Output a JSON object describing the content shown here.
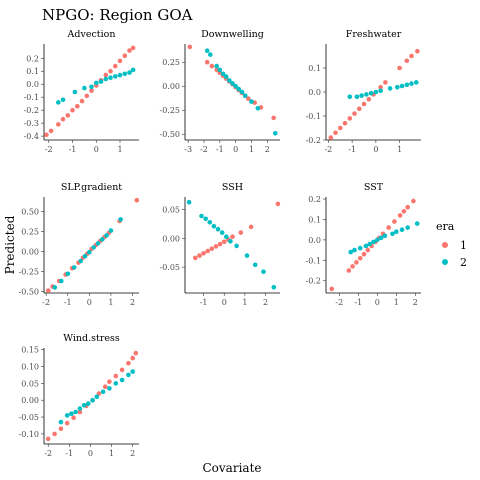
{
  "figure": {
    "title": "NPGO: Region GOA",
    "xlabel": "Covariate",
    "ylabel": "Predicted"
  },
  "legend": {
    "title": "era",
    "entries": [
      {
        "label": "1",
        "color": "#F8766D"
      },
      {
        "label": "2",
        "color": "#00BFC4"
      }
    ]
  },
  "chart_data": [
    {
      "type": "scatter",
      "title": "Advection",
      "xlim": [
        -2.2,
        1.8
      ],
      "ylim": [
        -0.43,
        0.31
      ],
      "xticks": [
        -2,
        -1,
        0,
        1
      ],
      "yticks": [
        -0.4,
        -0.3,
        -0.2,
        -0.1,
        0.0,
        0.1,
        0.2
      ],
      "yticklabels": [
        "-0.4",
        "-0.3",
        "-0.2",
        "-0.1",
        "0.0",
        "0.1",
        "0.2"
      ],
      "series": [
        {
          "name": "1",
          "x": [
            -2.1,
            -1.9,
            -1.6,
            -1.4,
            -1.2,
            -1.0,
            -0.8,
            -0.6,
            -0.4,
            -0.2,
            0.0,
            0.2,
            0.4,
            0.6,
            0.8,
            1.0,
            1.2,
            1.4,
            1.55
          ],
          "y": [
            -0.39,
            -0.36,
            -0.31,
            -0.27,
            -0.24,
            -0.2,
            -0.17,
            -0.13,
            -0.09,
            -0.05,
            -0.01,
            0.03,
            0.07,
            0.1,
            0.14,
            0.18,
            0.22,
            0.26,
            0.28
          ]
        },
        {
          "name": "2",
          "x": [
            -1.6,
            -1.4,
            -0.9,
            -0.5,
            -0.2,
            0.0,
            0.2,
            0.4,
            0.6,
            0.8,
            1.0,
            1.2,
            1.4,
            1.55
          ],
          "y": [
            -0.14,
            -0.12,
            -0.06,
            -0.03,
            -0.02,
            0.01,
            0.02,
            0.04,
            0.05,
            0.06,
            0.07,
            0.08,
            0.09,
            0.11
          ]
        }
      ]
    },
    {
      "type": "scatter",
      "title": "Downwelling",
      "xlim": [
        -3.2,
        2.8
      ],
      "ylim": [
        -0.56,
        0.44
      ],
      "xticks": [
        -3,
        -2,
        -1,
        0,
        1,
        2
      ],
      "yticks": [
        -0.5,
        -0.25,
        0.0,
        0.25
      ],
      "yticklabels": [
        "-0.50",
        "-0.25",
        "0.00",
        "0.25"
      ],
      "series": [
        {
          "name": "1",
          "x": [
            -2.9,
            -1.8,
            -1.5,
            -1.2,
            -1.0,
            -0.8,
            -0.6,
            -0.4,
            -0.2,
            0.0,
            0.2,
            0.4,
            0.6,
            0.8,
            1.2,
            1.6,
            2.4
          ],
          "y": [
            0.41,
            0.25,
            0.21,
            0.17,
            0.14,
            0.11,
            0.08,
            0.05,
            0.02,
            -0.01,
            -0.04,
            -0.07,
            -0.1,
            -0.13,
            -0.17,
            -0.22,
            -0.33
          ]
        },
        {
          "name": "2",
          "x": [
            -1.8,
            -1.6,
            -1.2,
            -1.0,
            -0.8,
            -0.6,
            -0.4,
            -0.2,
            0.0,
            0.2,
            0.4,
            0.6,
            1.0,
            1.4,
            2.5
          ],
          "y": [
            0.37,
            0.33,
            0.21,
            0.17,
            0.13,
            0.1,
            0.06,
            0.03,
            0.0,
            -0.03,
            -0.06,
            -0.1,
            -0.16,
            -0.23,
            -0.49
          ]
        }
      ]
    },
    {
      "type": "scatter",
      "title": "Freshwater",
      "xlim": [
        -2.1,
        1.9
      ],
      "ylim": [
        -0.2,
        0.2
      ],
      "xticks": [
        -2,
        -1,
        0,
        1
      ],
      "yticks": [
        -0.2,
        -0.1,
        0.0,
        0.1
      ],
      "yticklabels": [
        "-0.2",
        "-0.1",
        "0.0",
        "0.1"
      ],
      "series": [
        {
          "name": "1",
          "x": [
            -1.9,
            -1.7,
            -1.5,
            -1.3,
            -1.1,
            -0.9,
            -0.7,
            -0.5,
            -0.3,
            -0.1,
            0.2,
            0.4,
            1.0,
            1.3,
            1.5,
            1.75
          ],
          "y": [
            -0.19,
            -0.17,
            -0.15,
            -0.13,
            -0.11,
            -0.09,
            -0.07,
            -0.05,
            -0.03,
            -0.01,
            0.02,
            0.04,
            0.1,
            0.13,
            0.15,
            0.17
          ]
        },
        {
          "name": "2",
          "x": [
            -1.1,
            -0.8,
            -0.6,
            -0.4,
            -0.2,
            0.0,
            0.2,
            0.6,
            0.9,
            1.1,
            1.3,
            1.5,
            1.7
          ],
          "y": [
            -0.02,
            -0.02,
            -0.015,
            -0.01,
            -0.005,
            0.0,
            0.005,
            0.015,
            0.02,
            0.025,
            0.03,
            0.035,
            0.04
          ]
        }
      ]
    },
    {
      "type": "scatter",
      "title": "SLP.gradient",
      "xlim": [
        -2.1,
        2.3
      ],
      "ylim": [
        -0.52,
        0.68
      ],
      "xticks": [
        -2,
        -1,
        0,
        1,
        2
      ],
      "yticks": [
        -0.5,
        -0.25,
        0.0,
        0.25,
        0.5
      ],
      "yticklabels": [
        "-0.50",
        "-0.25",
        "0.00",
        "0.25",
        "0.50"
      ],
      "series": [
        {
          "name": "1",
          "x": [
            -1.9,
            -1.7,
            -1.4,
            -1.1,
            -0.8,
            -0.5,
            -0.3,
            -0.1,
            0.1,
            0.3,
            0.5,
            0.7,
            0.9,
            1.4,
            2.2
          ],
          "y": [
            -0.49,
            -0.44,
            -0.37,
            -0.29,
            -0.21,
            -0.14,
            -0.08,
            -0.03,
            0.03,
            0.08,
            0.13,
            0.18,
            0.23,
            0.38,
            0.64
          ]
        },
        {
          "name": "2",
          "x": [
            -1.6,
            -1.3,
            -1.0,
            -0.7,
            -0.4,
            -0.2,
            0.0,
            0.2,
            0.4,
            0.6,
            0.8,
            1.0,
            1.45
          ],
          "y": [
            -0.45,
            -0.37,
            -0.28,
            -0.2,
            -0.12,
            -0.06,
            -0.01,
            0.05,
            0.1,
            0.15,
            0.2,
            0.26,
            0.4
          ]
        }
      ]
    },
    {
      "type": "scatter",
      "title": "SSH",
      "xlim": [
        -1.9,
        2.7
      ],
      "ylim": [
        -0.095,
        0.072
      ],
      "xticks": [
        -1,
        0,
        1,
        2
      ],
      "yticks": [
        -0.05,
        0.0,
        0.05
      ],
      "yticklabels": [
        "-0.05",
        "0.00",
        "0.05"
      ],
      "series": [
        {
          "name": "1",
          "x": [
            -1.4,
            -1.2,
            -1.0,
            -0.8,
            -0.6,
            -0.4,
            -0.2,
            0.0,
            0.2,
            0.4,
            0.8,
            1.3,
            2.6
          ],
          "y": [
            -0.034,
            -0.03,
            -0.026,
            -0.022,
            -0.018,
            -0.014,
            -0.01,
            -0.006,
            -0.002,
            0.003,
            0.01,
            0.02,
            0.06
          ]
        },
        {
          "name": "2",
          "x": [
            -1.7,
            -1.1,
            -0.9,
            -0.7,
            -0.5,
            -0.3,
            -0.1,
            0.1,
            0.3,
            0.6,
            1.1,
            1.5,
            1.9,
            2.4
          ],
          "y": [
            0.063,
            0.039,
            0.034,
            0.028,
            0.021,
            0.016,
            0.01,
            0.003,
            -0.005,
            -0.013,
            -0.03,
            -0.046,
            -0.058,
            -0.085
          ]
        }
      ]
    },
    {
      "type": "scatter",
      "title": "SST",
      "xlim": [
        -2.7,
        2.3
      ],
      "ylim": [
        -0.26,
        0.21
      ],
      "xticks": [
        -2,
        -1,
        0,
        1,
        2
      ],
      "yticks": [
        -0.2,
        -0.1,
        0.0,
        0.1,
        0.2
      ],
      "yticklabels": [
        "-0.2",
        "-0.1",
        "0.0",
        "0.1",
        "0.2"
      ],
      "series": [
        {
          "name": "1",
          "x": [
            -2.4,
            -1.5,
            -1.3,
            -1.1,
            -0.9,
            -0.7,
            -0.5,
            -0.3,
            -0.1,
            0.1,
            0.3,
            0.6,
            0.9,
            1.2,
            1.4,
            1.6,
            1.9
          ],
          "y": [
            -0.24,
            -0.15,
            -0.13,
            -0.11,
            -0.09,
            -0.07,
            -0.05,
            -0.03,
            -0.01,
            0.01,
            0.03,
            0.06,
            0.09,
            0.12,
            0.14,
            0.16,
            0.19
          ]
        },
        {
          "name": "2",
          "x": [
            -1.4,
            -1.2,
            -0.9,
            -0.6,
            -0.4,
            -0.2,
            0.0,
            0.2,
            0.4,
            0.8,
            1.0,
            1.3,
            1.6,
            2.1
          ],
          "y": [
            -0.06,
            -0.05,
            -0.04,
            -0.03,
            -0.02,
            -0.01,
            0.0,
            0.01,
            0.02,
            0.03,
            0.04,
            0.05,
            0.06,
            0.08
          ]
        }
      ]
    },
    {
      "type": "scatter",
      "title": "Wind.stress",
      "xlim": [
        -2.2,
        2.3
      ],
      "ylim": [
        -0.13,
        0.155
      ],
      "xticks": [
        -2,
        -1,
        0,
        1,
        2
      ],
      "yticks": [
        -0.1,
        -0.05,
        0.0,
        0.05,
        0.1,
        0.15
      ],
      "yticklabels": [
        "-0.10",
        "-0.05",
        "0.00",
        "0.05",
        "0.10",
        "0.15"
      ],
      "series": [
        {
          "name": "1",
          "x": [
            -2.0,
            -1.7,
            -1.4,
            -1.1,
            -0.8,
            -0.5,
            -0.2,
            0.1,
            0.4,
            0.7,
            0.9,
            1.2,
            1.5,
            1.8,
            2.0,
            2.15
          ],
          "y": [
            -0.115,
            -0.1,
            -0.085,
            -0.068,
            -0.052,
            -0.035,
            -0.017,
            0.0,
            0.02,
            0.04,
            0.055,
            0.072,
            0.09,
            0.11,
            0.125,
            0.14
          ]
        },
        {
          "name": "2",
          "x": [
            -1.4,
            -1.1,
            -0.9,
            -0.7,
            -0.5,
            -0.3,
            -0.1,
            0.1,
            0.3,
            0.6,
            0.9,
            1.2,
            1.5,
            1.8,
            2.0
          ],
          "y": [
            -0.065,
            -0.045,
            -0.04,
            -0.035,
            -0.025,
            -0.015,
            -0.01,
            0.0,
            0.01,
            0.025,
            0.035,
            0.05,
            0.06,
            0.075,
            0.085
          ]
        }
      ]
    }
  ]
}
